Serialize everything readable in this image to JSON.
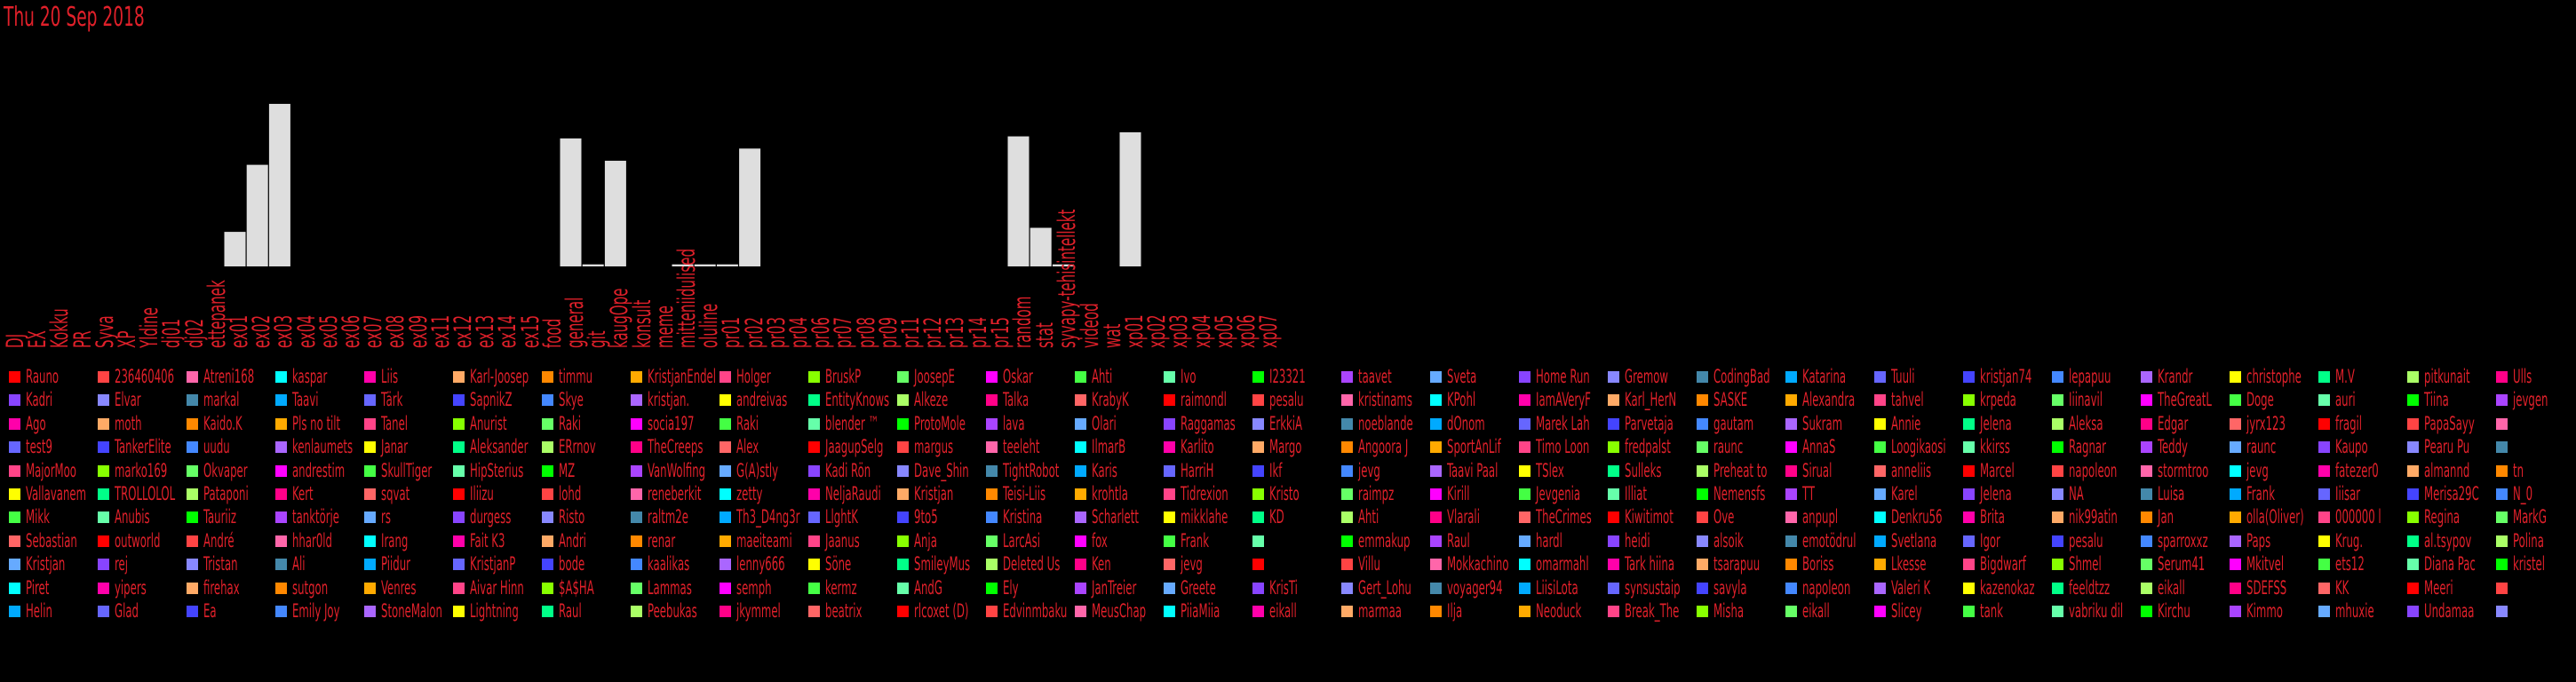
{
  "date": "Thu 20 Sep 2018",
  "chart_data": {
    "type": "bar",
    "title": "",
    "xlabel": "",
    "ylabel": "",
    "ylim": [
      0,
      10
    ],
    "categories": [
      "DJ",
      "EX",
      "Kokku",
      "PR",
      "Syva",
      "XP",
      "Yldine",
      "dj01",
      "dj02",
      "ettepanek",
      "ex01",
      "ex02",
      "ex03",
      "ex04",
      "ex05",
      "ex06",
      "ex07",
      "ex08",
      "ex09",
      "ex11",
      "ex12",
      "ex13",
      "ex14",
      "ex15",
      "food",
      "general",
      "git",
      "kaugOpe",
      "konsult",
      "meme",
      "mitteniidulised",
      "oluline",
      "pr01",
      "pr02",
      "pr03",
      "pr04",
      "pr06",
      "pr07",
      "pr08",
      "pr09",
      "pr11",
      "pr12",
      "pr13",
      "pr14",
      "pr15",
      "random",
      "stat",
      "syvapy-tehisintellekt",
      "videod",
      "wat",
      "xp01",
      "xp02",
      "xp03",
      "xp04",
      "xp05",
      "xp06",
      "xp07"
    ],
    "values": [
      0,
      0,
      0,
      0,
      0,
      0,
      0,
      0,
      0,
      0,
      1.7,
      5.0,
      8.0,
      0,
      0,
      0,
      0,
      0,
      0,
      0,
      0,
      0,
      0,
      0,
      0,
      6.3,
      0.1,
      5.2,
      0,
      0,
      0.1,
      0.1,
      0.1,
      5.8,
      0,
      0,
      0,
      0,
      0,
      0,
      0,
      0,
      0,
      0,
      0,
      6.4,
      1.9,
      0.1,
      0,
      0,
      6.6,
      0,
      0,
      0,
      0,
      0,
      0
    ]
  },
  "users": [
    [
      "Rauno",
      "Kadri",
      "Ago",
      "test9",
      "MajorMoo",
      "Vallavanem",
      "Mikk",
      "Sebastian",
      "Kristjan",
      "Piret",
      "Helin"
    ],
    [
      "236460406",
      "Elvar",
      "moth",
      "TankerElite",
      "marko169",
      "TROLLOLOL",
      "Anubis",
      "outworld",
      "rej",
      "yipers",
      "Glad"
    ],
    [
      "Atreni168",
      "markal",
      "Kaido.K",
      "uudu",
      "Okvaper",
      "Pataponi",
      "Tauriiz",
      "André",
      "Tristan",
      "firehax",
      "Ea"
    ],
    [
      "kaspar",
      "Taavi",
      "Pls no tilt",
      "kenlaumets",
      "andrestim",
      "Kert",
      "tanktörje",
      "hhar0ld",
      "Ali",
      "sutgon",
      "Emily Joy"
    ],
    [
      "Liis",
      "Tärk",
      "Tanel",
      "Janar",
      "SkullTiger",
      "sqvat",
      "rs",
      "Irang",
      "Piidur",
      "Venres",
      "StoneMalon"
    ],
    [
      "Karl-Joosep",
      "SapnikZ",
      "Anurist",
      "Aleksander",
      "HipSterius",
      "Iliizu",
      "durgess",
      "Fait K3",
      "KristjanP",
      "Aivar Hinn",
      "Lightning"
    ],
    [
      "timmu",
      "Skye",
      "Raki",
      "ERrnov",
      "MZ",
      "lohd",
      "Risto",
      "Andri",
      "bode",
      "$A$HA",
      "Raul"
    ],
    [
      "KristjanEndel",
      "kristjan.",
      "socia197",
      "TheCreeps",
      "VanWolfing",
      "reneberkit",
      "raltm2e",
      "renar",
      "kaalikas",
      "Lammas",
      "Peebukas"
    ],
    [
      "Holger",
      "andreivas",
      "Raki",
      "Alex",
      "G(A)stly",
      "zetty",
      "Th3_D4ng3r",
      "maeiteami",
      "lenny666",
      "semph",
      "jkymmel"
    ],
    [
      "BruskP",
      "EntityKnows",
      "blender ™",
      "JaagupSelg",
      "Kadi Rön",
      "NeljaRaudi",
      "LlghtK",
      "Jaanus",
      "Söne",
      "kermz",
      "beatrix"
    ],
    [
      "JoosepE",
      "Alkeze",
      "ProtoMole",
      "margus",
      "Dave_Shin",
      "Kristjan",
      "9to5",
      "Anja",
      "SmileyMus",
      "AndG",
      "rlcoxet (D)"
    ],
    [
      "Oskar",
      "Talka",
      "lava",
      "teeleht",
      "TightRobot",
      "Teisi-Liis",
      "Kristina",
      "LarcAsi",
      "Deleted Us",
      "Ely",
      "Edvinmbaku"
    ],
    [
      "Ahti",
      "KrabyK",
      "Olari",
      "IlmarB",
      "Karis",
      "krohtla",
      "Scharlett",
      "fox",
      "Ken",
      "JanTreier",
      "MeusChap"
    ],
    [
      "Ivo",
      "raimondl",
      "Raggamas",
      "Karlito",
      "HarriH",
      "Tidrexion",
      "mikklahe",
      "Frank",
      "jevg",
      "Greete",
      "PiiaMiia"
    ],
    [
      "I23321",
      "pesalu",
      "ErkkiA",
      "Margo",
      "Ikf",
      "Kristo",
      "KD",
      "",
      "",
      "KrisTi",
      "eikall"
    ],
    [
      "taavet",
      "kristinams",
      "noeblande",
      "Angoora J",
      "jevg",
      "raimpz",
      "Ahti",
      "emmakup",
      "Villu",
      "Gert_Lohu",
      "marmaa"
    ],
    [
      "Sveta",
      "KPohl",
      "dOnom",
      "SportAnLif",
      "Taavi Paal",
      "Kirill",
      "Vlarali",
      "Raul",
      "Mokkachino",
      "voyager94",
      "Ilja"
    ],
    [
      "Home Run",
      "IamAVeryF",
      "Marek Lah",
      "Timo Loon",
      "TSlex",
      "Jevgenia",
      "TheCrimes",
      "hardl",
      "omarmahl",
      "LiisiLota",
      "Neoduck"
    ],
    [
      "Gremow",
      "Karl_HerN",
      "Parvetaja",
      "fredpalst",
      "Sulleks",
      "Illiat",
      "Kiwitimot",
      "heidi",
      "Tark hiina",
      "synsustaip",
      "Break_The"
    ],
    [
      "CodingBad",
      "SASKE",
      "gautam",
      "raunc",
      "Preheat to",
      "Nemensfs",
      "Ove",
      "alsoik",
      "tsarapuu",
      "savyla",
      "Misha"
    ],
    [
      "Katarina",
      "Alexandra",
      "Sukram",
      "AnnaS",
      "Sirual",
      "TT",
      "anpupl",
      "emotödrul",
      "Boriss",
      "napoleon",
      "eikall"
    ],
    [
      "Tuuli",
      "tahvel",
      "Annie",
      "Loogikaosi",
      "anneliis",
      "Karel",
      "Denkru56",
      "Svetlana",
      "Lkesse",
      "Valeri K",
      "Slicey"
    ],
    [
      "kristjan74",
      "krpeda",
      "Jelena",
      "kkirss",
      "Marcel",
      "Jelena",
      "Brita",
      "Igor",
      "Bigdwarf",
      "kazenokaz",
      "tank"
    ],
    [
      "lepapuu",
      "Iiinavil",
      "Aleksa",
      "Ragnar",
      "napoleon",
      "NA",
      "nik99atin",
      "pesalu",
      "Shmel",
      "feeldtzz",
      "vabriku dil"
    ],
    [
      "Krandr",
      "TheGreatL",
      "Edgar",
      "Teddy",
      "stormtroo",
      "Luisa",
      "Jan",
      "sparroxxz",
      "Serum41",
      "eikall",
      "Kirchu"
    ],
    [
      "christophe",
      "Doge",
      "jyrx123",
      "raunc",
      "jevg",
      "Frank",
      "olla(Oliver)",
      "Paps",
      "Mkitvel",
      "SDEFSS",
      "Kimmo"
    ],
    [
      "M.V",
      "auri",
      "fragil",
      "Kaupo",
      "fatezer0",
      "Iiisar",
      "000000 l",
      "Krug.",
      "ets12",
      "KK",
      "mhuxie"
    ],
    [
      "pitkunait",
      "Tiina",
      "PapaSayy",
      "Pearu Pu",
      "almannd",
      "Merisa29C",
      "Regina",
      "al.tsypov",
      "Diana Pac",
      "Meeri",
      "Undamaa"
    ],
    [
      "Ulls",
      "jevgen",
      "",
      "",
      "tn",
      "N_0",
      "MarkG",
      "Polina",
      "kristel",
      "",
      ""
    ]
  ],
  "palette": [
    "#ff0000",
    "#ff00ff",
    "#4444ff",
    "#00ffff",
    "#00ff00",
    "#ffff00",
    "#ff8800",
    "#8844ff",
    "#ff0088",
    "#88ff00",
    "#00aaff",
    "#ff4444",
    "#44ff44",
    "#4488ff",
    "#ff00aa",
    "#aa44ff",
    "#00ff88",
    "#ffaa00",
    "#8888ff",
    "#ff6666",
    "#66ff66",
    "#6666ff",
    "#ff66aa",
    "#66ffaa",
    "#aa66ff",
    "#ffaa66",
    "#66aaff",
    "#aaff66",
    "#ff4488",
    "#4488aa"
  ]
}
